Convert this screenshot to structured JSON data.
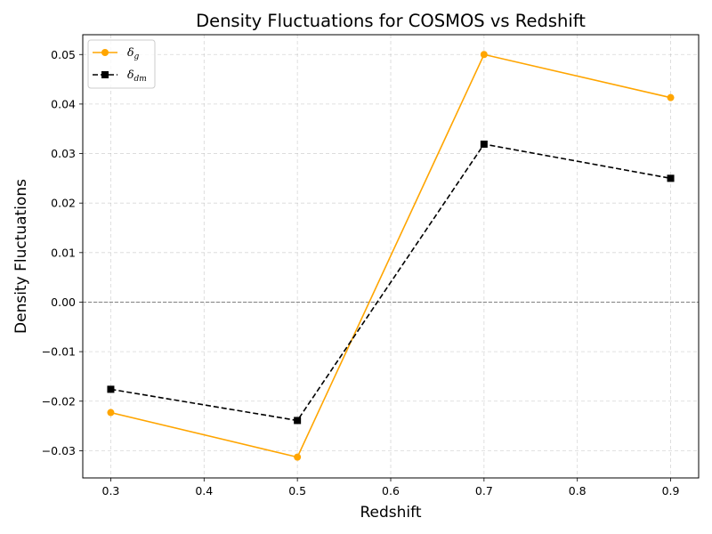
{
  "chart_data": {
    "type": "line",
    "title": "Density Fluctuations for COSMOS vs Redshift",
    "xlabel": "Redshift",
    "ylabel": "Density Fluctuations",
    "x": [
      0.3,
      0.5,
      0.7,
      0.9
    ],
    "xlim": [
      0.27,
      0.93
    ],
    "ylim": [
      -0.0355,
      0.054
    ],
    "xticks": [
      0.3,
      0.4,
      0.5,
      0.6,
      0.7,
      0.8,
      0.9
    ],
    "xtick_labels": [
      "0.3",
      "0.4",
      "0.5",
      "0.6",
      "0.7",
      "0.8",
      "0.9"
    ],
    "yticks": [
      -0.03,
      -0.02,
      -0.01,
      0.0,
      0.01,
      0.02,
      0.03,
      0.04,
      0.05
    ],
    "ytick_labels": [
      "−0.03",
      "−0.02",
      "−0.01",
      "0.00",
      "0.01",
      "0.02",
      "0.03",
      "0.04",
      "0.05"
    ],
    "grid": true,
    "reference_line_y": 0.0,
    "legend_position": "top-left",
    "series": [
      {
        "name": "δg",
        "legend_symbol": "δ",
        "legend_subscript": "g",
        "values": [
          -0.0223,
          -0.0313,
          0.05,
          0.0413
        ],
        "color": "#ffa500",
        "marker": "circle",
        "line_style": "solid"
      },
      {
        "name": "δdm",
        "legend_symbol": "δ",
        "legend_subscript": "dm",
        "values": [
          -0.0176,
          -0.0239,
          0.0319,
          0.025
        ],
        "color": "#000000",
        "marker": "square",
        "line_style": "dashed"
      }
    ]
  }
}
